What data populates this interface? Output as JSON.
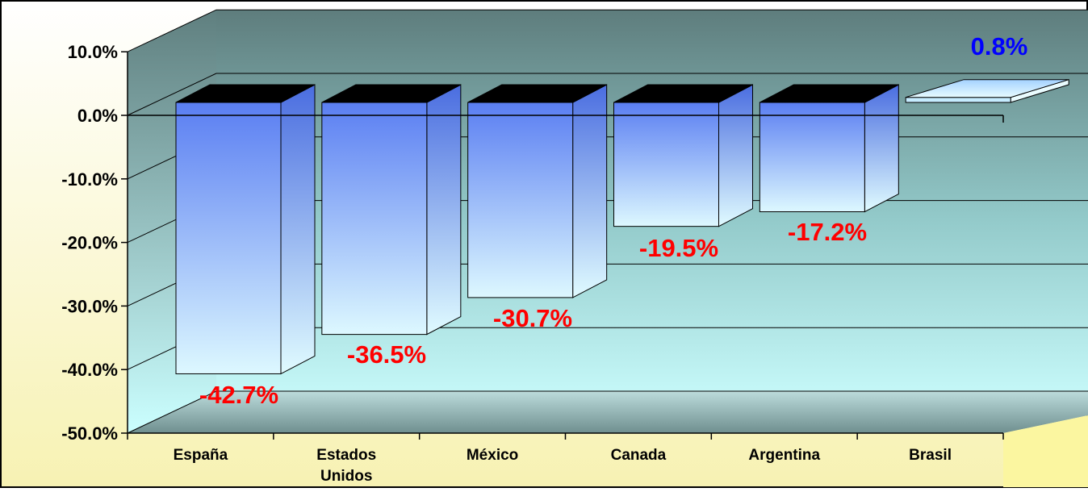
{
  "chart_data": {
    "type": "bar",
    "title": "",
    "xlabel": "",
    "ylabel": "",
    "categories": [
      "España",
      "Estados Unidos",
      "México",
      "Canada",
      "Argentina",
      "Brasil"
    ],
    "values": [
      -42.7,
      -36.5,
      -30.7,
      -19.5,
      -17.2,
      0.8
    ],
    "data_labels": [
      "-42.7%",
      "-36.5%",
      "-30.7%",
      "-19.5%",
      "-17.2%",
      "0.8%"
    ],
    "ylim": [
      -50,
      10
    ],
    "yticks": [
      10,
      0,
      -10,
      -20,
      -30,
      -40,
      -50
    ],
    "ytick_labels": [
      "10.0%",
      "0.0%",
      "-10.0%",
      "-20.0%",
      "-30.0%",
      "-40.0%",
      "-50.0%"
    ],
    "grid": true,
    "legend": "none",
    "style": "3d",
    "colors": {
      "bar_top": "#5b7ff0",
      "bar_bottom": "#d8f6ff",
      "bar_cap": "#000000",
      "positive_cap": "#a6d6ff",
      "negative_label": "#ff0000",
      "positive_label": "#0000ff",
      "wall_top": "#5f7f7f",
      "wall_bottom": "#bff4f4",
      "floor": "#fbf69f",
      "background": "#fffff0"
    }
  }
}
